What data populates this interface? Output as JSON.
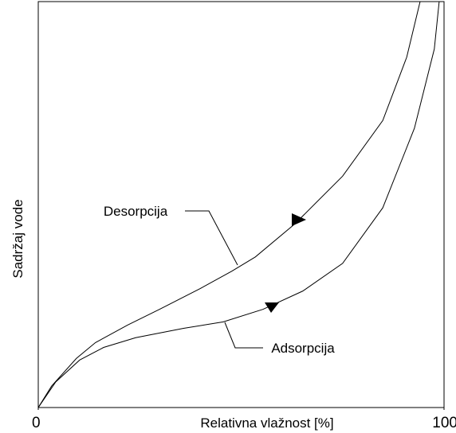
{
  "chart_data": {
    "type": "line",
    "x_label": "Relativna vlažnost [%]",
    "y_label": "Sadržaj vode",
    "xlim": [
      0,
      100
    ],
    "xticks": [
      0,
      100
    ],
    "ylim": [
      0,
      100
    ],
    "series": [
      {
        "name": "Desorpcija",
        "color": "#000000",
        "x": [
          0,
          3.3,
          9.4,
          14.1,
          22,
          29.9,
          39.9,
          47.7,
          53.5,
          63.3,
          75,
          84.9,
          90.8,
          94.1
        ],
        "values": [
          0,
          5.3,
          12.1,
          16,
          20.3,
          24.2,
          29.3,
          33.6,
          37.1,
          45.3,
          57,
          70.7,
          86.3,
          100
        ]
      },
      {
        "name": "Adsorpcija",
        "color": "#000000",
        "x": [
          0,
          4.3,
          10.2,
          16.1,
          24,
          35.8,
          45.6,
          55.4,
          65.2,
          75,
          84.9,
          92.7,
          97.6,
          98.8
        ],
        "values": [
          0,
          6.3,
          11.7,
          14.8,
          17.2,
          19.5,
          21.1,
          24.2,
          28.7,
          35.5,
          49.2,
          68.8,
          88.3,
          100
        ]
      }
    ]
  }
}
